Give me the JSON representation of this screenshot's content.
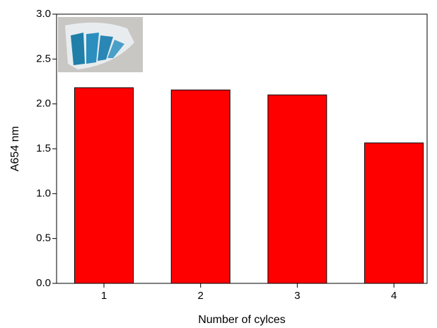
{
  "chart_data": {
    "type": "bar",
    "x_label": "Number of cylces",
    "y_label": "A654 nm",
    "categories": [
      "1",
      "2",
      "3",
      "4"
    ],
    "values": [
      2.18,
      2.155,
      2.1,
      1.565
    ],
    "color": "#ff0000",
    "ylim": [
      0,
      3
    ],
    "yticks": [
      {
        "value": 0,
        "label": "0.0"
      },
      0.5,
      {
        "value": 1,
        "label": "1.0"
      },
      1.5,
      {
        "value": 2,
        "label": "2.0"
      },
      2.5,
      {
        "value": 3,
        "label": "3.0"
      }
    ],
    "grid": false
  }
}
